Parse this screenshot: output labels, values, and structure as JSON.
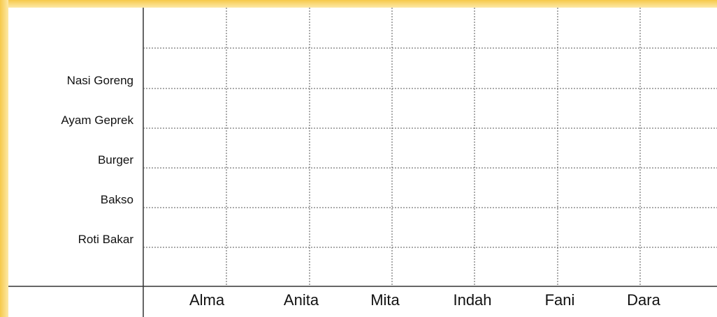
{
  "row_labels": [
    "Nasi Goreng",
    "Ayam Geprek",
    "Burger",
    "Bakso",
    "Roti Bakar"
  ],
  "column_labels": [
    "Alma",
    "Anita",
    "Mita",
    "Indah",
    "Fani",
    "Dara"
  ]
}
